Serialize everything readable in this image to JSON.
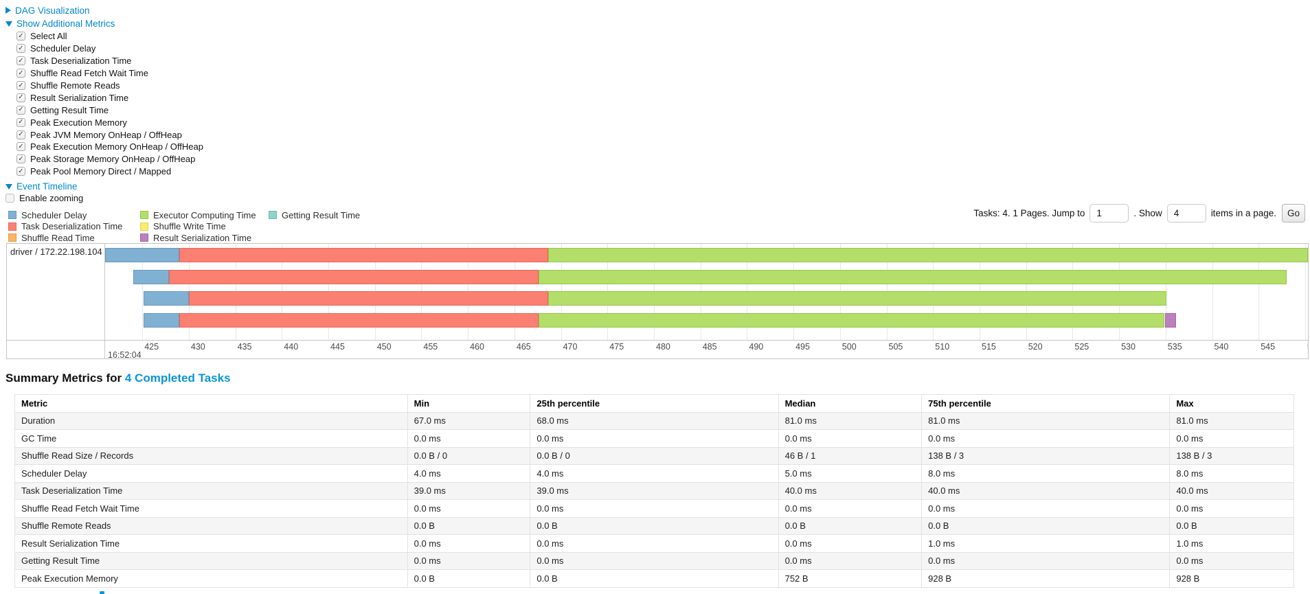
{
  "toggles": {
    "dag_label": "DAG Visualization",
    "additional_metrics_label": "Show Additional Metrics",
    "event_timeline_label": "Event Timeline",
    "enable_zooming_label": "Enable zooming",
    "enable_zooming_checked": false
  },
  "metrics_panel": {
    "items": [
      {
        "label": "Select All",
        "checked": true
      },
      {
        "label": "Scheduler Delay",
        "checked": true
      },
      {
        "label": "Task Deserialization Time",
        "checked": true
      },
      {
        "label": "Shuffle Read Fetch Wait Time",
        "checked": true
      },
      {
        "label": "Shuffle Remote Reads",
        "checked": true
      },
      {
        "label": "Result Serialization Time",
        "checked": true
      },
      {
        "label": "Getting Result Time",
        "checked": true
      },
      {
        "label": "Peak Execution Memory",
        "checked": true
      },
      {
        "label": "Peak JVM Memory OnHeap / OffHeap",
        "checked": true
      },
      {
        "label": "Peak Execution Memory OnHeap / OffHeap",
        "checked": true
      },
      {
        "label": "Peak Storage Memory OnHeap / OffHeap",
        "checked": true
      },
      {
        "label": "Peak Pool Memory Direct / Mapped",
        "checked": true
      }
    ]
  },
  "pagination": {
    "tasks_text": "Tasks: 4. 1 Pages. Jump to",
    "jump_value": "1",
    "between_text": ". Show",
    "show_value": "4",
    "after_text": "items in a page.",
    "go_label": "Go"
  },
  "chart_data": {
    "type": "timeline",
    "group_label": "driver / 172.22.198.104",
    "x_axis": {
      "xlim": [
        421.0,
        550.3
      ],
      "tick_start": 425,
      "tick_end": 550,
      "tick_step": 5,
      "major_label": "16:52:04"
    },
    "legend": [
      {
        "name": "Scheduler Delay",
        "color": "#80B1D3",
        "border": "#6898BD"
      },
      {
        "name": "Task Deserialization Time",
        "color": "#FB8072",
        "border": "#E3685C"
      },
      {
        "name": "Shuffle Read Time",
        "color": "#FDB462",
        "border": "#E09A48"
      },
      {
        "name": "Executor Computing Time",
        "color": "#B3DE69",
        "border": "#97C64A"
      },
      {
        "name": "Shuffle Write Time",
        "color": "#FFED6F",
        "border": "#E0D054"
      },
      {
        "name": "Result Serialization Time",
        "color": "#BC80BD",
        "border": "#A566A6"
      },
      {
        "name": "Getting Result Time",
        "color": "#8DD3C7",
        "border": "#6FBCAE"
      }
    ],
    "tasks": [
      {
        "segments": [
          {
            "metric": "Scheduler Delay",
            "start": 421.0,
            "end": 429.0
          },
          {
            "metric": "Task Deserialization Time",
            "start": 429.0,
            "end": 468.6
          },
          {
            "metric": "Executor Computing Time",
            "start": 468.6,
            "end": 550.3
          }
        ]
      },
      {
        "segments": [
          {
            "metric": "Scheduler Delay",
            "start": 424.0,
            "end": 427.9
          },
          {
            "metric": "Task Deserialization Time",
            "start": 427.9,
            "end": 467.6
          },
          {
            "metric": "Executor Computing Time",
            "start": 467.6,
            "end": 548.0
          }
        ]
      },
      {
        "segments": [
          {
            "metric": "Scheduler Delay",
            "start": 425.1,
            "end": 430.0
          },
          {
            "metric": "Task Deserialization Time",
            "start": 430.0,
            "end": 468.6
          },
          {
            "metric": "Executor Computing Time",
            "start": 468.6,
            "end": 535.1
          }
        ]
      },
      {
        "segments": [
          {
            "metric": "Scheduler Delay",
            "start": 425.1,
            "end": 429.0
          },
          {
            "metric": "Task Deserialization Time",
            "start": 429.0,
            "end": 467.6
          },
          {
            "metric": "Executor Computing Time",
            "start": 467.6,
            "end": 534.9
          },
          {
            "metric": "Result Serialization Time",
            "start": 534.9,
            "end": 536.1
          }
        ]
      }
    ]
  },
  "summary": {
    "title_prefix": "Summary Metrics for",
    "title_link": "4 Completed Tasks",
    "columns": [
      "Metric",
      "Min",
      "25th percentile",
      "Median",
      "75th percentile",
      "Max"
    ],
    "rows": [
      [
        "Duration",
        "67.0 ms",
        "68.0 ms",
        "81.0 ms",
        "81.0 ms",
        "81.0 ms"
      ],
      [
        "GC Time",
        "0.0 ms",
        "0.0 ms",
        "0.0 ms",
        "0.0 ms",
        "0.0 ms"
      ],
      [
        "Shuffle Read Size / Records",
        "0.0 B / 0",
        "0.0 B / 0",
        "46 B / 1",
        "138 B / 3",
        "138 B / 3"
      ],
      [
        "Scheduler Delay",
        "4.0 ms",
        "4.0 ms",
        "5.0 ms",
        "8.0 ms",
        "8.0 ms"
      ],
      [
        "Task Deserialization Time",
        "39.0 ms",
        "39.0 ms",
        "40.0 ms",
        "40.0 ms",
        "40.0 ms"
      ],
      [
        "Shuffle Read Fetch Wait Time",
        "0.0 ms",
        "0.0 ms",
        "0.0 ms",
        "0.0 ms",
        "0.0 ms"
      ],
      [
        "Shuffle Remote Reads",
        "0.0 B",
        "0.0 B",
        "0.0 B",
        "0.0 B",
        "0.0 B"
      ],
      [
        "Result Serialization Time",
        "0.0 ms",
        "0.0 ms",
        "0.0 ms",
        "1.0 ms",
        "1.0 ms"
      ],
      [
        "Getting Result Time",
        "0.0 ms",
        "0.0 ms",
        "0.0 ms",
        "0.0 ms",
        "0.0 ms"
      ],
      [
        "Peak Execution Memory",
        "0.0 B",
        "0.0 B",
        "752 B",
        "928 B",
        "928 B"
      ]
    ]
  },
  "colors": {
    "link": "#0088cc"
  }
}
